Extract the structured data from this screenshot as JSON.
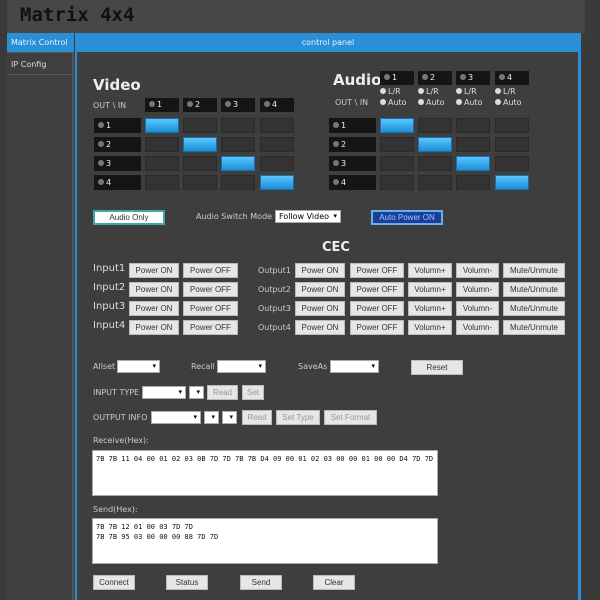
{
  "app": {
    "title": "Matrix 4x4"
  },
  "sidebar": {
    "items": [
      {
        "label": "Matrix Control",
        "active": true
      },
      {
        "label": "IP Config",
        "active": false
      }
    ]
  },
  "panel": {
    "title": "control panel"
  },
  "video": {
    "title": "Video",
    "corner": "OUT \\ IN",
    "inputs": [
      "1",
      "2",
      "3",
      "4"
    ],
    "outputs": [
      "1",
      "2",
      "3",
      "4"
    ],
    "routing": [
      1,
      2,
      3,
      4
    ]
  },
  "audio": {
    "title": "Audio",
    "corner": "OUT \\ IN",
    "inputs": [
      "1",
      "2",
      "3",
      "4"
    ],
    "outputs": [
      "1",
      "2",
      "3",
      "4"
    ],
    "routing": [
      1,
      2,
      3,
      4
    ],
    "opt_lr": "L/R",
    "opt_auto": "Auto"
  },
  "controls": {
    "audio_only": "Audio Only",
    "switch_mode_label": "Audio Switch Mode",
    "switch_mode_value": "Follow Video",
    "auto_power": "Auto Power ON"
  },
  "cec": {
    "title": "CEC",
    "inputs": [
      "Input1",
      "Input2",
      "Input3",
      "Input4"
    ],
    "outputs": [
      "Output1",
      "Output2",
      "Output3",
      "Output4"
    ],
    "input_buttons": [
      "Power ON",
      "Power OFF"
    ],
    "output_buttons": [
      "Power ON",
      "Power OFF",
      "Volumn+",
      "Volumn-",
      "Mute/Unmute"
    ]
  },
  "presets": {
    "allset": "Allset",
    "recall": "Recall",
    "saveas": "SaveAs",
    "reset": "Reset"
  },
  "input_type": {
    "label": "INPUT TYPE",
    "read": "Read",
    "set": "Set"
  },
  "output_info": {
    "label": "OUTPUT INFO",
    "read": "Read",
    "set_type": "Set Type",
    "set_format": "Set Format"
  },
  "receive": {
    "label": "Receive(Hex):",
    "value": "7B 7B 11 04 00 01 02 03 0B 7D 7D 7B 7B D4 09 00 01 02 03 00 00 01 00 00 D4 7D 7D"
  },
  "send": {
    "label": "Send(Hex):",
    "value": "7B 7B 12 01 00 03 7D 7D\n7B 7B 95 03 00 00 00 88 7D 7D"
  },
  "actions": {
    "connect": "Connect",
    "status": "Status",
    "send": "Send",
    "clear": "Clear"
  }
}
